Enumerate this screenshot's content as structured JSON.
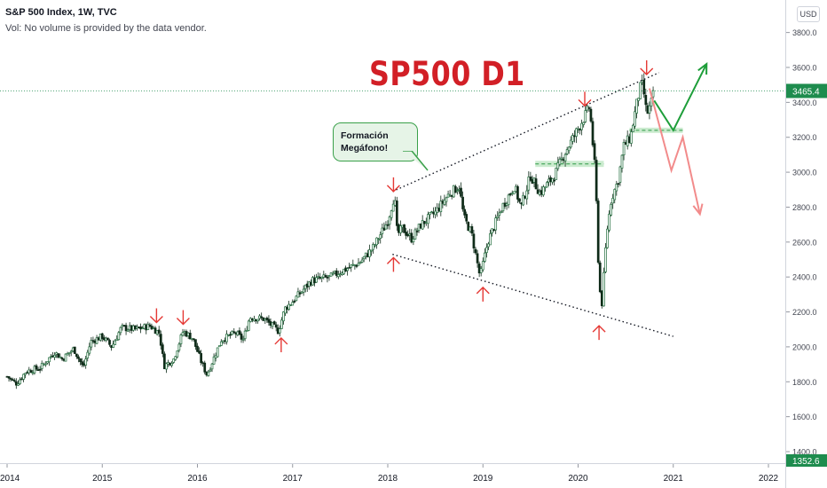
{
  "header": {
    "title": "S&P 500 Index, 1W, TVC",
    "volume_note": "Vol: No volume is provided by the data vendor.",
    "currency": "USD"
  },
  "annotation_title": "SP500 D1",
  "callout": {
    "line1": "Formación",
    "line2": "Megáfono!"
  },
  "price_badges": {
    "last": "3465.4",
    "low": "1352.6"
  },
  "colors": {
    "candle_up": "#1e6b3a",
    "candle_down": "#0e2a18",
    "arrow_red": "#e53935",
    "arrow_green": "#1e9e3a",
    "arrow_pink": "#f28b8b",
    "badge_green": "#1e8c4e",
    "zone_fill": "#b9e4bf"
  },
  "chart_data": {
    "type": "candlestick",
    "symbol": "S&P 500 Index",
    "interval": "1W",
    "x_ticks": [
      "2014",
      "2015",
      "2016",
      "2017",
      "2018",
      "2019",
      "2020",
      "2021",
      "2022"
    ],
    "y_ticks": [
      1400,
      1600,
      1800,
      2000,
      2200,
      2400,
      2600,
      2800,
      3000,
      3200,
      3400,
      3600,
      3800
    ],
    "y_range": [
      1360,
      3930
    ],
    "x_range": [
      2014.0,
      2022.6
    ],
    "last_price": 3465.4,
    "grid": false,
    "price_path": [
      [
        2014.0,
        1830
      ],
      [
        2014.1,
        1790
      ],
      [
        2014.2,
        1860
      ],
      [
        2014.35,
        1880
      ],
      [
        2014.5,
        1970
      ],
      [
        2014.58,
        1930
      ],
      [
        2014.7,
        1990
      ],
      [
        2014.8,
        1880
      ],
      [
        2014.88,
        2030
      ],
      [
        2015.0,
        2060
      ],
      [
        2015.1,
        2000
      ],
      [
        2015.2,
        2110
      ],
      [
        2015.35,
        2100
      ],
      [
        2015.5,
        2120
      ],
      [
        2015.6,
        2080
      ],
      [
        2015.65,
        1890
      ],
      [
        2015.75,
        1930
      ],
      [
        2015.85,
        2090
      ],
      [
        2015.95,
        2050
      ],
      [
        2016.05,
        1900
      ],
      [
        2016.1,
        1840
      ],
      [
        2016.25,
        2040
      ],
      [
        2016.4,
        2080
      ],
      [
        2016.48,
        2040
      ],
      [
        2016.55,
        2170
      ],
      [
        2016.7,
        2160
      ],
      [
        2016.85,
        2090
      ],
      [
        2016.92,
        2220
      ],
      [
        2017.0,
        2260
      ],
      [
        2017.2,
        2380
      ],
      [
        2017.4,
        2400
      ],
      [
        2017.5,
        2430
      ],
      [
        2017.7,
        2480
      ],
      [
        2017.85,
        2570
      ],
      [
        2018.0,
        2720
      ],
      [
        2018.07,
        2870
      ],
      [
        2018.1,
        2640
      ],
      [
        2018.15,
        2680
      ],
      [
        2018.25,
        2620
      ],
      [
        2018.35,
        2700
      ],
      [
        2018.5,
        2770
      ],
      [
        2018.65,
        2880
      ],
      [
        2018.75,
        2920
      ],
      [
        2018.8,
        2740
      ],
      [
        2018.88,
        2650
      ],
      [
        2018.97,
        2400
      ],
      [
        2019.05,
        2600
      ],
      [
        2019.2,
        2800
      ],
      [
        2019.33,
        2920
      ],
      [
        2019.4,
        2800
      ],
      [
        2019.5,
        2980
      ],
      [
        2019.6,
        2880
      ],
      [
        2019.75,
        2980
      ],
      [
        2019.85,
        3100
      ],
      [
        2020.0,
        3250
      ],
      [
        2020.1,
        3350
      ],
      [
        2020.12,
        3380
      ],
      [
        2020.18,
        3000
      ],
      [
        2020.2,
        2710
      ],
      [
        2020.22,
        2350
      ],
      [
        2020.25,
        2250
      ],
      [
        2020.3,
        2650
      ],
      [
        2020.35,
        2850
      ],
      [
        2020.42,
        2950
      ],
      [
        2020.48,
        3150
      ],
      [
        2020.55,
        3200
      ],
      [
        2020.6,
        3350
      ],
      [
        2020.65,
        3480
      ],
      [
        2020.68,
        3500
      ],
      [
        2020.72,
        3330
      ],
      [
        2020.76,
        3380
      ],
      [
        2020.8,
        3465.4
      ]
    ],
    "lines": [
      {
        "name": "upper-trendline",
        "from": [
          2018.05,
          2890
        ],
        "to": [
          2020.85,
          3570
        ]
      },
      {
        "name": "lower-trendline",
        "from": [
          2018.05,
          2530
        ],
        "to": [
          2021.0,
          2060
        ]
      }
    ],
    "zones": [
      {
        "x0": 2019.55,
        "x1": 2020.27,
        "y0": 3030,
        "y1": 3065
      },
      {
        "x0": 2020.54,
        "x1": 2021.1,
        "y0": 3225,
        "y1": 3255
      }
    ],
    "markers_down": [
      [
        2015.57,
        2180
      ],
      [
        2015.85,
        2170
      ],
      [
        2018.06,
        2930
      ],
      [
        2020.07,
        3420
      ],
      [
        2020.72,
        3600
      ]
    ],
    "markers_up": [
      [
        2016.88,
        2010
      ],
      [
        2018.06,
        2470
      ],
      [
        2019.0,
        2300
      ],
      [
        2020.22,
        2080
      ]
    ],
    "projections": {
      "green": [
        [
          2020.8,
          3410
        ],
        [
          2021.0,
          3240
        ],
        [
          2021.35,
          3620
        ]
      ],
      "pink": [
        [
          2020.75,
          3480
        ],
        [
          2020.98,
          3010
        ],
        [
          2021.1,
          3200
        ],
        [
          2021.28,
          2760
        ]
      ]
    }
  }
}
